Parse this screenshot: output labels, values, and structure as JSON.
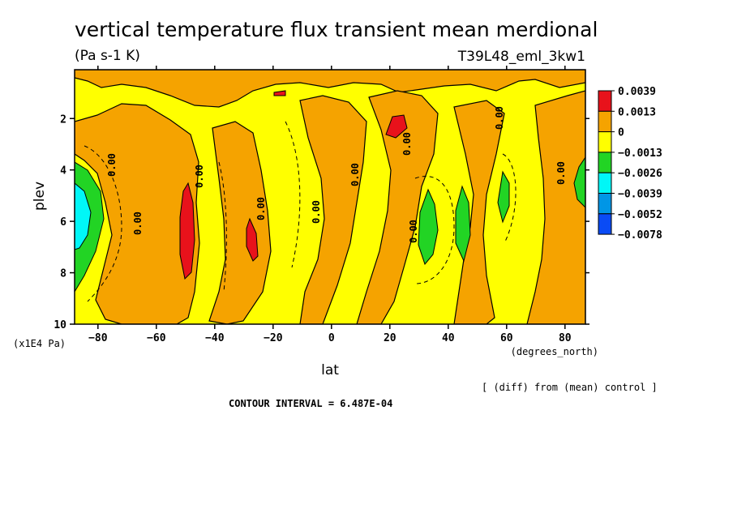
{
  "chart_data": {
    "type": "heatmap",
    "title": "vertical temperature flux transient mean merdional",
    "units_label": "(Pa s-1 K)",
    "run_label": "T39L48_eml_3kw1",
    "xlabel": "lat",
    "x_units": "(degrees_north)",
    "ylabel": "plev",
    "y_units": "(x1E4 Pa)",
    "diff_note": "[ (diff) from (mean) control ]",
    "contour_interval_text": "CONTOUR INTERVAL = 6.487E-04",
    "x_ticks": [
      -80,
      -60,
      -40,
      -20,
      0,
      20,
      40,
      60,
      80
    ],
    "x_tick_labels": [
      "−80",
      "−60",
      "−40",
      "−20",
      "0",
      "20",
      "40",
      "60",
      "80"
    ],
    "y_ticks": [
      2,
      4,
      6,
      8,
      10
    ],
    "y_tick_labels": [
      "2",
      "4",
      "6",
      "8",
      "10"
    ],
    "xlim": [
      -88,
      87
    ],
    "ylim": [
      0.1,
      10
    ],
    "y_inverted": true,
    "contour_line_label": "0.00",
    "legend": {
      "placement": "right",
      "labels": [
        "0.0039",
        "0.0013",
        "0",
        "−0.0013",
        "−0.0026",
        "−0.0039",
        "−0.0052",
        "−0.0078"
      ],
      "colors": [
        "#e8121b",
        "#f5a300",
        "#ffff00",
        "#22d424",
        "#00f7f7",
        "#0096e6",
        "#0a4bf5"
      ]
    },
    "bands": [
      {
        "lat_range": [
          -88,
          -84
        ],
        "value": "-0.0026 to -0.0039",
        "levels": [
          4.5,
          7
        ]
      },
      {
        "lat_range": [
          -52,
          -47
        ],
        "value": "0.0013 to 0.0039",
        "levels": [
          4.5,
          8
        ]
      },
      {
        "lat_range": [
          -29,
          -25
        ],
        "value": "0.0013 to 0.0039",
        "levels": [
          5.8,
          7.6
        ]
      },
      {
        "lat_range": [
          20,
          26
        ],
        "value": "0.0013 to 0.0039",
        "levels": [
          1.8,
          2.8
        ]
      },
      {
        "lat_range": [
          30,
          36
        ],
        "value": "-0.0013 to -0.0026",
        "levels": [
          4.6,
          7.6
        ]
      },
      {
        "lat_range": [
          43,
          48
        ],
        "value": "-0.0013 to -0.0026",
        "levels": [
          4.6,
          7.2
        ]
      },
      {
        "lat_range": [
          60,
          64
        ],
        "value": "-0.0013 to -0.0026",
        "levels": [
          4,
          6.1
        ]
      },
      {
        "lat_range": [
          84,
          87
        ],
        "value": "-0.0013 to -0.0026",
        "levels": [
          3.7,
          5.6
        ]
      }
    ]
  }
}
